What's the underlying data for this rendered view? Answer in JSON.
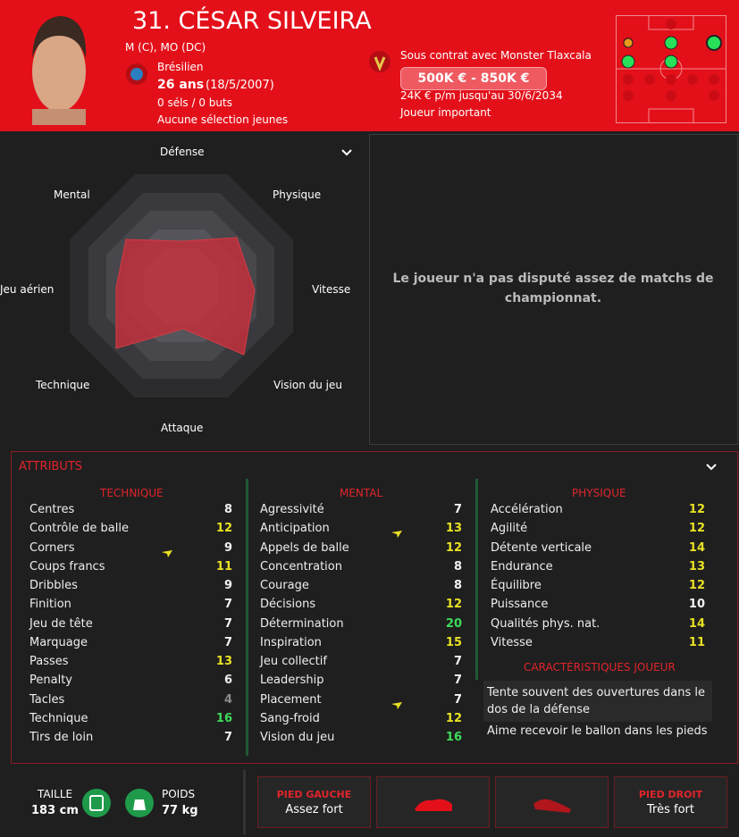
{
  "header": {
    "title": "31. CÉSAR SILVEIRA",
    "positions": "M (C), MO (DC)",
    "nationality": "Brésilien",
    "age": "26 ans",
    "birth_date": "(18/5/2007)",
    "caps": "0 séls / 0 buts",
    "youth_caps": "Aucune sélection jeunes",
    "contract": "Sous contrat avec Monster Tlaxcala",
    "value": "500K € - 850K €",
    "wage": "24K € p/m jusqu'au 30/6/2034",
    "status": "Joueur important"
  },
  "radar": {
    "selector": "Défense",
    "labels": [
      "Mental",
      "Physique",
      "Jeu aérien",
      "Vitesse",
      "Technique",
      "Vision du jeu",
      "Attaque"
    ]
  },
  "stats_message": "Le joueur n'a pas disputé assez de matchs de championnat.",
  "attributes": {
    "title": "ATTRIBUTS",
    "columns": [
      {
        "heading": "TECHNIQUE",
        "rows": [
          {
            "name": "Centres",
            "value": 8
          },
          {
            "name": "Contrôle de balle",
            "value": 12
          },
          {
            "name": "Corners",
            "value": 9,
            "arrow": true
          },
          {
            "name": "Coups francs",
            "value": 11
          },
          {
            "name": "Dribbles",
            "value": 9
          },
          {
            "name": "Finition",
            "value": 7
          },
          {
            "name": "Jeu de tête",
            "value": 7
          },
          {
            "name": "Marquage",
            "value": 7
          },
          {
            "name": "Passes",
            "value": 13
          },
          {
            "name": "Penalty",
            "value": 6
          },
          {
            "name": "Tacles",
            "value": 4
          },
          {
            "name": "Technique",
            "value": 16
          },
          {
            "name": "Tirs de loin",
            "value": 7
          }
        ]
      },
      {
        "heading": "MENTAL",
        "rows": [
          {
            "name": "Agressivité",
            "value": 7
          },
          {
            "name": "Anticipation",
            "value": 13,
            "arrow": true
          },
          {
            "name": "Appels de balle",
            "value": 12
          },
          {
            "name": "Concentration",
            "value": 8
          },
          {
            "name": "Courage",
            "value": 8
          },
          {
            "name": "Décisions",
            "value": 12
          },
          {
            "name": "Détermination",
            "value": 20
          },
          {
            "name": "Inspiration",
            "value": 15
          },
          {
            "name": "Jeu collectif",
            "value": 7
          },
          {
            "name": "Leadership",
            "value": 7
          },
          {
            "name": "Placement",
            "value": 7,
            "arrow": true
          },
          {
            "name": "Sang-froid",
            "value": 12
          },
          {
            "name": "Vision du jeu",
            "value": 16
          }
        ]
      },
      {
        "heading": "PHYSIQUE",
        "rows": [
          {
            "name": "Accélération",
            "value": 12
          },
          {
            "name": "Agilité",
            "value": 12
          },
          {
            "name": "Détente verticale",
            "value": 14
          },
          {
            "name": "Endurance",
            "value": 13
          },
          {
            "name": "Équilibre",
            "value": 12
          },
          {
            "name": "Puissance",
            "value": 10
          },
          {
            "name": "Qualités phys. nat.",
            "value": 14
          },
          {
            "name": "Vitesse",
            "value": 11
          }
        ]
      }
    ],
    "traits_heading": "CARACTÉRISTIQUES JOUEUR",
    "traits": [
      "Tente souvent des ouvertures dans le dos de la défense",
      "Aime recevoir le ballon dans les pieds"
    ]
  },
  "footer": {
    "height_label": "TAILLE",
    "height": "183 cm",
    "weight_label": "POIDS",
    "weight": "77 kg",
    "left_foot_label": "PIED GAUCHE",
    "left_foot": "Assez fort",
    "right_foot_label": "PIED DROIT",
    "right_foot": "Très fort"
  }
}
